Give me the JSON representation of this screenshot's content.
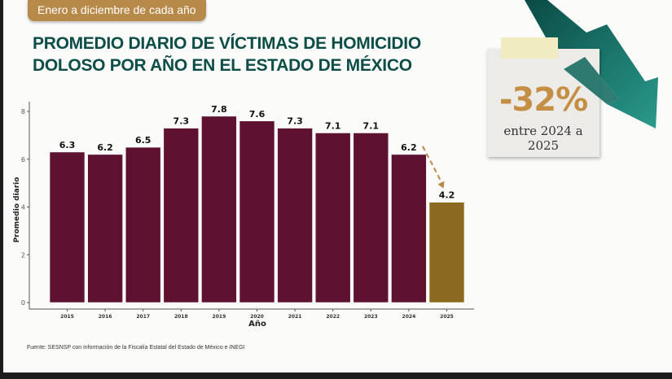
{
  "badge": "Enero a diciembre de cada año",
  "title_line1": "PROMEDIO DIARIO DE VÍCTIMAS DE HOMICIDIO",
  "title_line2": "DOLOSO POR AÑO EN EL ESTADO DE MÉXICO",
  "callout": {
    "value": "-32%",
    "caption": "entre 2024 a 2025",
    "arrow_icon": "trend-down-arrow"
  },
  "source": "Fuente: SESNSP con información de la Fiscalía Estatal del Estado de México e INEGI",
  "colors": {
    "bar": "#5e1230",
    "highlight": "#8a6a1e",
    "title": "#0c4d47",
    "accent": "#c48f45"
  },
  "chart_data": {
    "type": "bar",
    "title": "",
    "xlabel": "Año",
    "ylabel": "Promedio diario",
    "categories": [
      "2015",
      "2016",
      "2017",
      "2018",
      "2019",
      "2020",
      "2021",
      "2022",
      "2023",
      "2024",
      "2025"
    ],
    "values": [
      6.3,
      6.2,
      6.5,
      7.3,
      7.8,
      7.6,
      7.3,
      7.1,
      7.1,
      6.2,
      4.2
    ],
    "data_labels": [
      "6.3",
      "6.2",
      "6.5",
      "7.3",
      "7.8",
      "7.6",
      "7.3",
      "7.1",
      "7.1",
      "6.2",
      "4.2"
    ],
    "highlight_category": "2025",
    "ylim": [
      0,
      8
    ],
    "yticks": [
      0,
      2,
      4,
      6,
      8
    ],
    "grid": false,
    "legend": "none"
  }
}
